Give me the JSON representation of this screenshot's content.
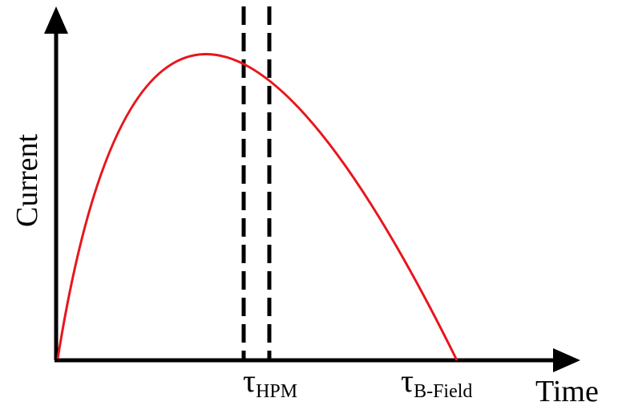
{
  "diagram": {
    "y_axis_label": "Current",
    "x_axis_label": "Time",
    "tick_hpm": {
      "symbol": "τ",
      "subscript": "HPM"
    },
    "tick_bfield": {
      "symbol": "τ",
      "subscript": "B-Field"
    },
    "colors": {
      "curve": "#e8151b",
      "axes": "#000000",
      "markers": "#000000"
    }
  }
}
